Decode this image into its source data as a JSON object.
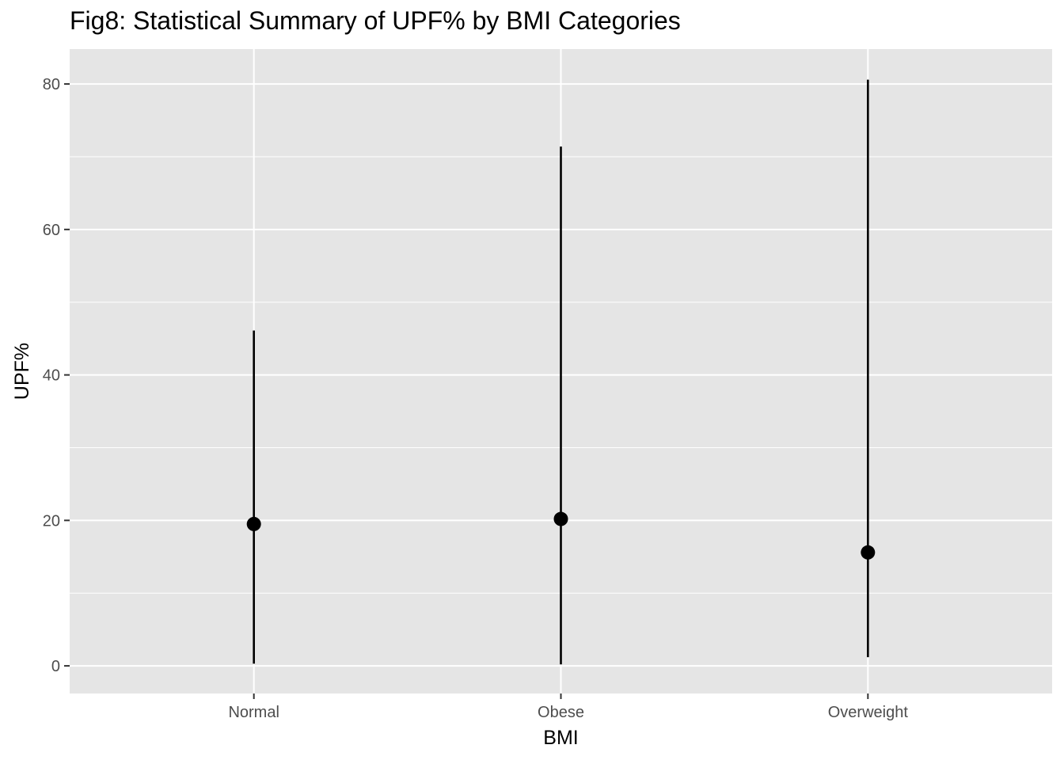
{
  "chart_data": {
    "type": "pointrange",
    "title": "Fig8: Statistical Summary of UPF% by BMI Categories",
    "xlabel": "BMI",
    "ylabel": "UPF%",
    "categories": [
      "Normal",
      "Obese",
      "Overweight"
    ],
    "points": [
      {
        "category": "Normal",
        "y": 19.5,
        "ymin": 0.3,
        "ymax": 46.1
      },
      {
        "category": "Obese",
        "y": 20.2,
        "ymin": 0.2,
        "ymax": 71.4
      },
      {
        "category": "Overweight",
        "y": 15.6,
        "ymin": 1.2,
        "ymax": 80.6
      }
    ],
    "ylim": [
      -3.8,
      84.8
    ],
    "yticks": [
      0,
      20,
      40,
      60,
      80
    ],
    "yminor": [
      10,
      30,
      50,
      70
    ],
    "grid": true,
    "legend": "none",
    "colors": {
      "panel": "#e5e5e5",
      "grid": "#ffffff",
      "marks": "#000000",
      "tick_text": "#4d4d4d",
      "tick": "#333333"
    }
  }
}
